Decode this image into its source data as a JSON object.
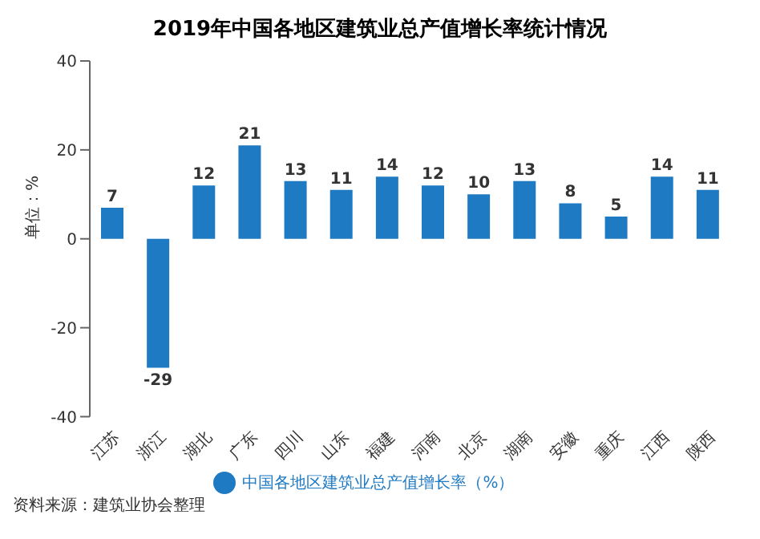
{
  "chart_data": {
    "type": "bar",
    "title": "2019年中国各地区建筑业总产值增长率统计情况",
    "categories": [
      "江苏",
      "浙江",
      "湖北",
      "广东",
      "四川",
      "山东",
      "福建",
      "河南",
      "北京",
      "湖南",
      "安徽",
      "重庆",
      "江西",
      "陕西"
    ],
    "series": [
      {
        "name": "中国各地区建筑业总产值增长率（%）",
        "color": "#1f7ac4",
        "values": [
          7,
          -29,
          12,
          21,
          13,
          11,
          14,
          12,
          10,
          13,
          8,
          5,
          14,
          11
        ]
      }
    ],
    "ylabel": "单位：%",
    "ylim": [
      -40,
      40
    ],
    "yticks": [
      -40,
      -20,
      0,
      20,
      40
    ],
    "data_labels": true,
    "legend": "bottom",
    "grid": false,
    "annotations": [
      "资料来源：建筑业协会整理"
    ]
  }
}
